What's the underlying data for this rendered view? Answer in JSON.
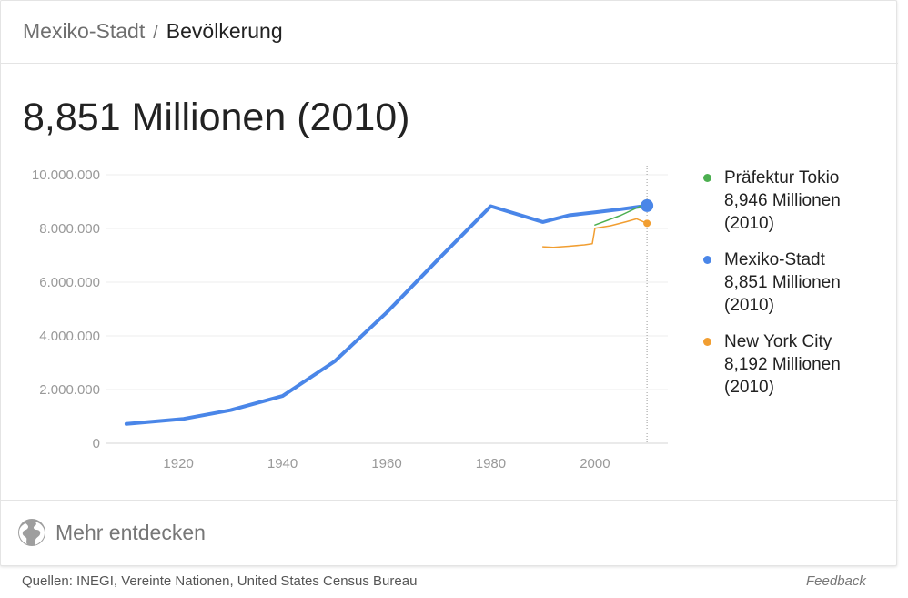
{
  "breadcrumb": {
    "root": "Mexiko-Stadt",
    "separator": "/",
    "current": "Bevölkerung"
  },
  "headline": "8,851 Millionen (2010)",
  "legend": [
    {
      "name": "Präfektur Tokio",
      "value": "8,946 Millionen",
      "year": "(2010)",
      "color": "#4caf50"
    },
    {
      "name": "Mexiko-Stadt",
      "value": "8,851 Millionen",
      "year": "(2010)",
      "color": "#4a86e8"
    },
    {
      "name": "New York City",
      "value": "8,192 Millionen",
      "year": "(2010)",
      "color": "#f19e31"
    }
  ],
  "explore": {
    "label": "Mehr entdecken",
    "icon": "globe-icon"
  },
  "footer": {
    "sources": "Quellen: INEGI, Vereinte Nationen, United States Census Bureau",
    "feedback": "Feedback"
  },
  "chart_data": {
    "type": "line",
    "x_ticks": [
      1920,
      1940,
      1960,
      1980,
      2000
    ],
    "y_ticks": [
      0,
      2000000,
      4000000,
      6000000,
      8000000,
      10000000
    ],
    "y_tick_labels": [
      "0",
      "2.000.000",
      "4.000.000",
      "6.000.000",
      "8.000.000",
      "10.000.000"
    ],
    "xlim": [
      1906,
      2014
    ],
    "ylim": [
      0,
      10000000
    ],
    "grid": true,
    "highlight_year": 2010,
    "series": [
      {
        "name": "Mexiko-Stadt",
        "color": "#4a86e8",
        "x": [
          1910,
          1921,
          1930,
          1940,
          1950,
          1960,
          1970,
          1980,
          1990,
          1995,
          2000,
          2005,
          2010
        ],
        "y": [
          720000,
          910000,
          1230000,
          1760000,
          3050000,
          4870000,
          6870000,
          8830000,
          8240000,
          8490000,
          8600000,
          8720000,
          8851000
        ]
      },
      {
        "name": "Präfektur Tokio",
        "color": "#4caf50",
        "x": [
          2000,
          2005,
          2010
        ],
        "y": [
          8130000,
          8490000,
          8946000
        ]
      },
      {
        "name": "New York City",
        "color": "#f19e31",
        "x": [
          1990,
          1992,
          1995,
          1998,
          1999.5,
          2000,
          2003,
          2006,
          2008,
          2010
        ],
        "y": [
          7320000,
          7300000,
          7340000,
          7390000,
          7430000,
          8010000,
          8100000,
          8250000,
          8360000,
          8192000
        ]
      }
    ]
  }
}
